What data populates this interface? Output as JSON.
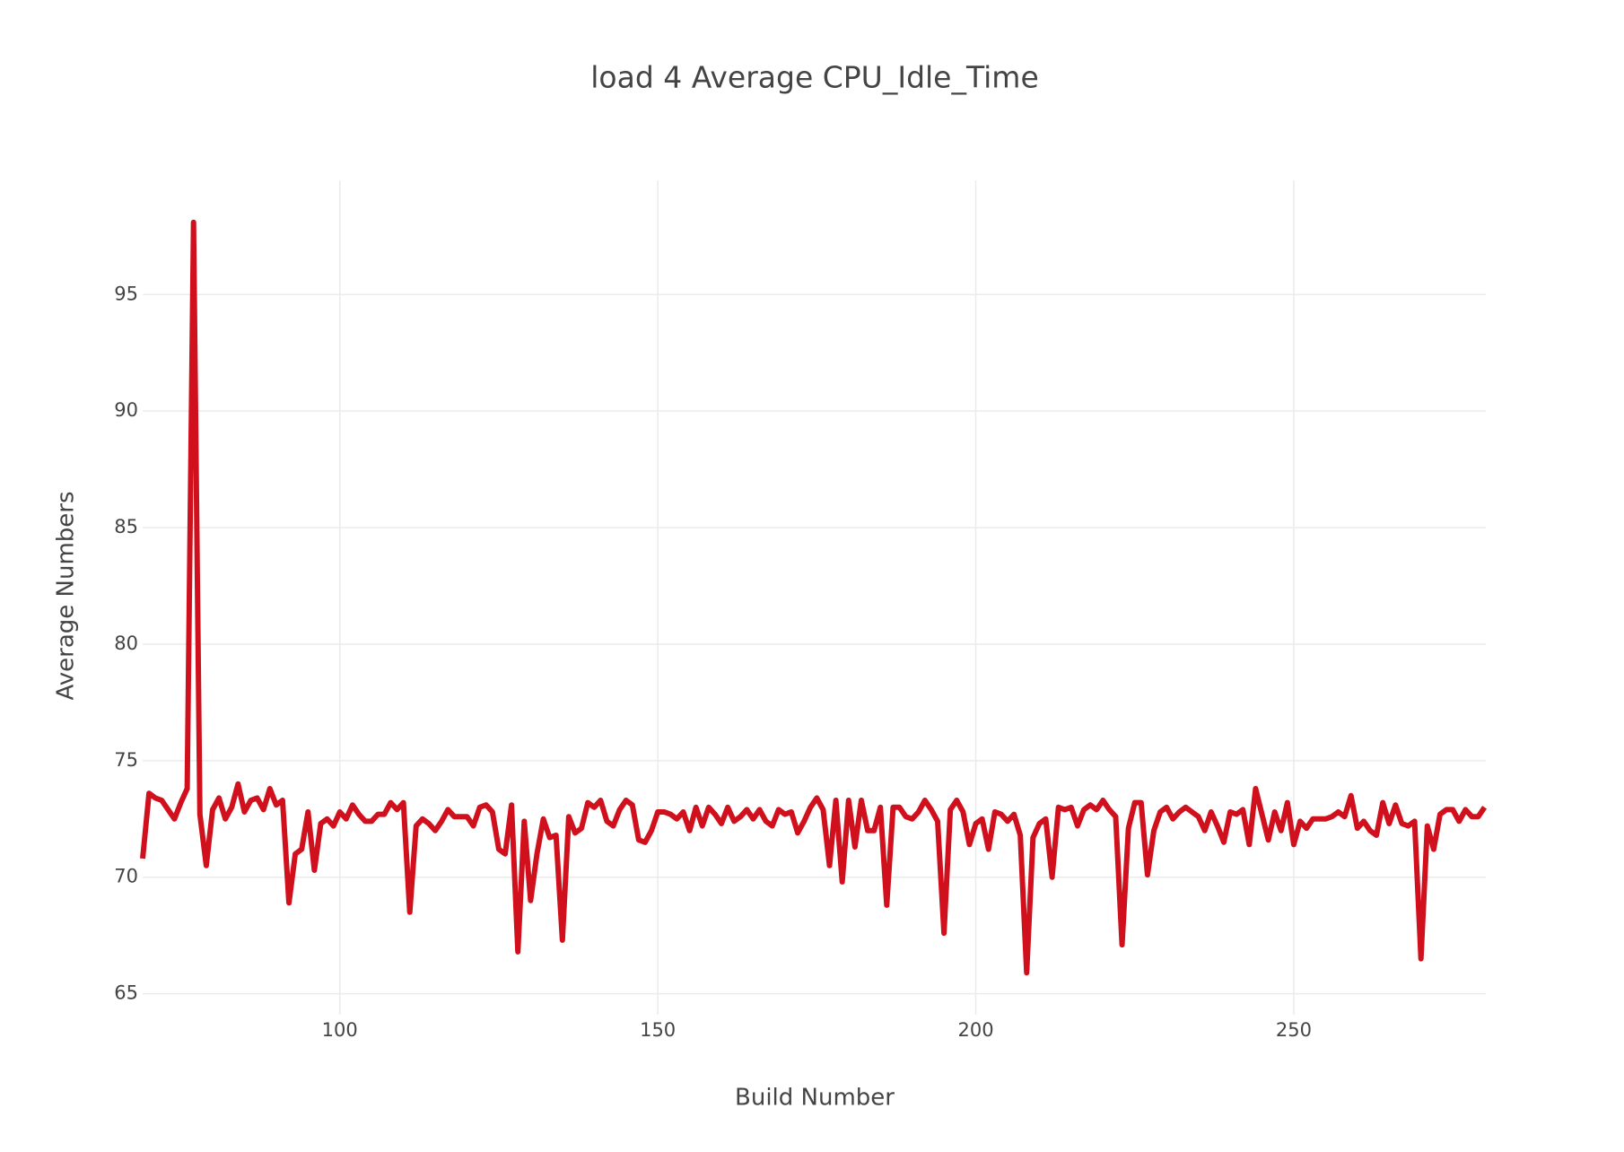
{
  "chart_data": {
    "type": "line",
    "title": "load 4 Average CPU_Idle_Time",
    "xlabel": "Build Number",
    "ylabel": "Average Numbers",
    "x": [
      69,
      70,
      71,
      72,
      73,
      74,
      75,
      76,
      77,
      78,
      79,
      80,
      81,
      82,
      83,
      84,
      85,
      86,
      87,
      88,
      89,
      90,
      91,
      92,
      93,
      94,
      95,
      96,
      97,
      98,
      99,
      100,
      101,
      102,
      103,
      104,
      105,
      106,
      107,
      108,
      109,
      110,
      111,
      112,
      113,
      114,
      115,
      116,
      117,
      118,
      119,
      120,
      121,
      122,
      123,
      124,
      125,
      126,
      127,
      128,
      129,
      130,
      131,
      132,
      133,
      134,
      135,
      136,
      137,
      138,
      139,
      140,
      141,
      142,
      143,
      144,
      145,
      146,
      147,
      148,
      149,
      150,
      151,
      152,
      153,
      154,
      155,
      156,
      157,
      158,
      159,
      160,
      161,
      162,
      163,
      164,
      165,
      166,
      167,
      168,
      169,
      170,
      171,
      172,
      173,
      174,
      175,
      176,
      177,
      178,
      179,
      180,
      181,
      182,
      183,
      184,
      185,
      186,
      187,
      188,
      189,
      190,
      191,
      192,
      193,
      194,
      195,
      196,
      197,
      198,
      199,
      200,
      201,
      202,
      203,
      204,
      205,
      206,
      207,
      208,
      209,
      210,
      211,
      212,
      213,
      214,
      215,
      216,
      217,
      218,
      219,
      220,
      221,
      222,
      223,
      224,
      225,
      226,
      227,
      228,
      229,
      230,
      231,
      232,
      233,
      234,
      235,
      236,
      237,
      238,
      239,
      240,
      241,
      242,
      243,
      244,
      245,
      246,
      247,
      248,
      249,
      250,
      251,
      252,
      253,
      254,
      255,
      256,
      257,
      258,
      259,
      260,
      261,
      262,
      263,
      264,
      265,
      266,
      267,
      268,
      269,
      270,
      271,
      272,
      273,
      274,
      275,
      276,
      277,
      278,
      279,
      280
    ],
    "series": [
      {
        "name": "load 4",
        "color": "#d0101c",
        "values": [
          70.8,
          73.6,
          73.4,
          73.3,
          72.9,
          72.5,
          73.2,
          73.8,
          98.1,
          72.7,
          70.5,
          72.9,
          73.4,
          72.5,
          73.0,
          74.0,
          72.8,
          73.3,
          73.4,
          72.9,
          73.8,
          73.1,
          73.3,
          68.9,
          71.0,
          71.2,
          72.8,
          70.3,
          72.3,
          72.5,
          72.2,
          72.8,
          72.5,
          73.1,
          72.7,
          72.4,
          72.4,
          72.7,
          72.7,
          73.2,
          72.9,
          73.2,
          68.5,
          72.2,
          72.5,
          72.3,
          72.0,
          72.4,
          72.9,
          72.6,
          72.6,
          72.6,
          72.2,
          73.0,
          73.1,
          72.8,
          71.2,
          71.0,
          73.1,
          66.8,
          72.4,
          69.0,
          71.0,
          72.5,
          71.7,
          71.8,
          67.3,
          72.6,
          71.9,
          72.1,
          73.2,
          73.0,
          73.3,
          72.4,
          72.2,
          72.9,
          73.3,
          73.1,
          71.6,
          71.5,
          72.0,
          72.8,
          72.8,
          72.7,
          72.5,
          72.8,
          72.0,
          73.0,
          72.2,
          73.0,
          72.7,
          72.3,
          73.0,
          72.4,
          72.6,
          72.9,
          72.5,
          72.9,
          72.4,
          72.2,
          72.9,
          72.7,
          72.8,
          71.9,
          72.4,
          73.0,
          73.4,
          72.9,
          70.5,
          73.3,
          69.8,
          73.3,
          71.3,
          73.3,
          72.0,
          72.0,
          73.0,
          68.8,
          73.0,
          73.0,
          72.6,
          72.5,
          72.8,
          73.3,
          72.9,
          72.4,
          67.6,
          72.9,
          73.3,
          72.8,
          71.4,
          72.3,
          72.5,
          71.2,
          72.8,
          72.7,
          72.4,
          72.7,
          71.8,
          65.9,
          71.7,
          72.3,
          72.5,
          70.0,
          73.0,
          72.9,
          73.0,
          72.2,
          72.9,
          73.1,
          72.9,
          73.3,
          72.9,
          72.6,
          67.1,
          72.1,
          73.2,
          73.2,
          70.1,
          72.0,
          72.8,
          73.0,
          72.5,
          72.8,
          73.0,
          72.8,
          72.6,
          72.0,
          72.8,
          72.2,
          71.5,
          72.8,
          72.7,
          72.9,
          71.4,
          73.8,
          72.7,
          71.6,
          72.8,
          72.0,
          73.2,
          71.4,
          72.4,
          72.1,
          72.5,
          72.5,
          72.5,
          72.6,
          72.8,
          72.6,
          73.5,
          72.1,
          72.4,
          72.0,
          71.8,
          73.2,
          72.3,
          73.1,
          72.3,
          72.2,
          72.4,
          66.5,
          72.2,
          71.2,
          72.7,
          72.9,
          72.9,
          72.4,
          72.9,
          72.6,
          72.6,
          73.0
        ]
      }
    ],
    "xlim": [
      69,
      280.2
    ],
    "xticks": [
      100,
      150,
      200,
      250
    ],
    "ylim": [
      64.1,
      99.9
    ],
    "yticks": [
      65,
      70,
      75,
      80,
      85,
      90,
      95
    ],
    "grid": true
  }
}
